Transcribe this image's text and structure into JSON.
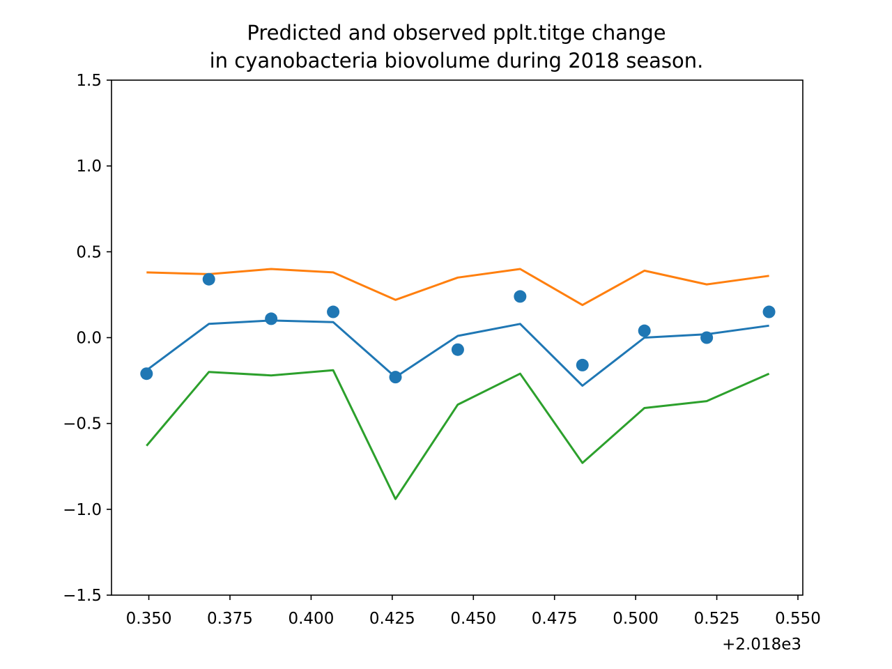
{
  "chart_data": {
    "type": "line",
    "title_lines": [
      "Predicted and observed pplt.titge change",
      "in cyanobacteria biovolume during 2018 season."
    ],
    "xlabel": "",
    "ylabel": "",
    "x_offset_label": "+2.018e3",
    "x_offset": 2018,
    "xlim": [
      0.3385,
      0.5515
    ],
    "ylim": [
      -1.5,
      1.5
    ],
    "x_ticks": [
      0.35,
      0.375,
      0.4,
      0.425,
      0.45,
      0.475,
      0.5,
      0.525,
      0.55
    ],
    "x_tick_labels": [
      "0.350",
      "0.375",
      "0.400",
      "0.425",
      "0.450",
      "0.475",
      "0.500",
      "0.525",
      "0.550"
    ],
    "y_ticks": [
      -1.5,
      -1.0,
      -0.5,
      0.0,
      0.5,
      1.0,
      1.5
    ],
    "y_tick_labels": [
      "−1.5",
      "−1.0",
      "−0.5",
      "0.0",
      "0.5",
      "1.0",
      "1.5"
    ],
    "grid": false,
    "legend": false,
    "x": [
      0.3493,
      0.3685,
      0.3877,
      0.4068,
      0.426,
      0.4452,
      0.4644,
      0.4836,
      0.5027,
      0.5219,
      0.5411
    ],
    "series": [
      {
        "kind": "line",
        "color": "#ff7f0e",
        "values": [
          0.38,
          0.37,
          0.4,
          0.38,
          0.22,
          0.35,
          0.4,
          0.19,
          0.39,
          0.31,
          0.36
        ]
      },
      {
        "kind": "line",
        "color": "#1f77b4",
        "values": [
          -0.19,
          0.08,
          0.1,
          0.09,
          -0.23,
          0.01,
          0.08,
          -0.28,
          0.0,
          0.02,
          0.07
        ]
      },
      {
        "kind": "line",
        "color": "#2ca02c",
        "values": [
          -0.63,
          -0.2,
          -0.22,
          -0.19,
          -0.94,
          -0.39,
          -0.21,
          -0.73,
          -0.41,
          -0.37,
          -0.21
        ]
      },
      {
        "kind": "scatter",
        "color": "#1f77b4",
        "values": [
          -0.21,
          0.34,
          0.11,
          0.15,
          -0.23,
          -0.07,
          0.24,
          -0.16,
          0.04,
          0.0,
          0.15
        ]
      }
    ]
  }
}
